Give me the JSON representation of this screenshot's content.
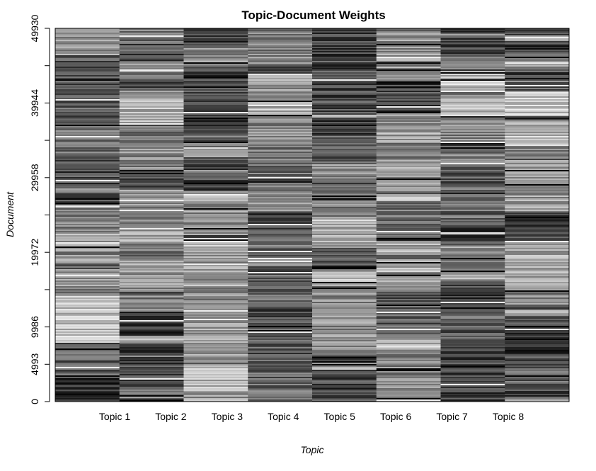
{
  "chart_data": {
    "type": "heatmap",
    "title": "Topic-Document Weights",
    "xlabel": "Topic",
    "ylabel": "Document",
    "categories": [
      "Topic 1",
      "Topic 2",
      "Topic 3",
      "Topic 4",
      "Topic 5",
      "Topic 6",
      "Topic 7",
      "Topic 8"
    ],
    "y_ticks": [
      0,
      4993,
      9986,
      19972,
      29958,
      39944,
      49930
    ],
    "y_minor_ticks": [
      14979,
      24965,
      34951,
      44937
    ],
    "ylim": [
      0,
      49930
    ],
    "color_scale": "grayscale (black = high weight, white = low weight)",
    "colors": {
      "high": "#000000",
      "low": "#ffffff",
      "frame": "#000000"
    },
    "document_count": 49930
  }
}
